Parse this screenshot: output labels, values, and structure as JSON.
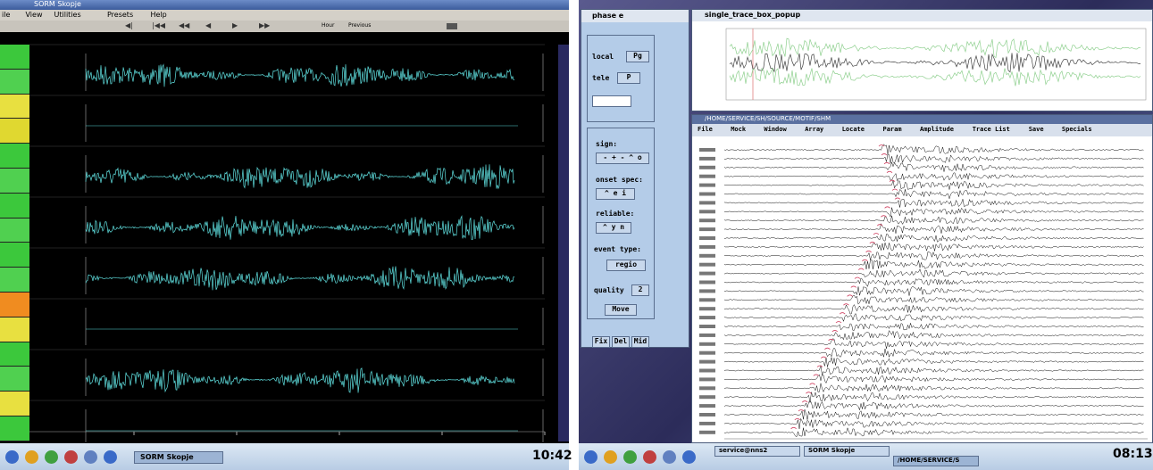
{
  "left": {
    "window_title": "SORM Skopje",
    "menu": [
      "ile",
      "View",
      "Utilities",
      "Presets",
      "Help"
    ],
    "toolbar": [
      "Hour",
      "Previous"
    ],
    "taskbar": {
      "app": "SORM Skopje",
      "clock": "10:42"
    }
  },
  "right": {
    "phase_window_title": "phase e",
    "trace_window_title": "single_trace_box_popup",
    "main_window_title": "/HOME/SERVICE/SH/SOURCE/MOTIF/SHM",
    "menu": [
      "File",
      "Mock",
      "Window",
      "Array",
      "Locate",
      "Param",
      "Amplitude",
      "Trace List",
      "Save",
      "Specials"
    ],
    "phase_panel": {
      "local": "local",
      "local_value": "Pg",
      "tele": "tele",
      "tele_value": "P",
      "sign": "sign:",
      "onset": "onset spec:",
      "reliable": "reliable:",
      "event_type": "event type:",
      "event_type_value": "regio",
      "quality": "quality",
      "quality_value": "2",
      "move": "Move",
      "buttons": [
        "Fix",
        "Del",
        "Mid"
      ]
    },
    "taskbar": {
      "items": [
        "service@nns2",
        "SORM Skopje",
        "/HOME/SERVICE/S"
      ],
      "clock": "08:13"
    }
  }
}
